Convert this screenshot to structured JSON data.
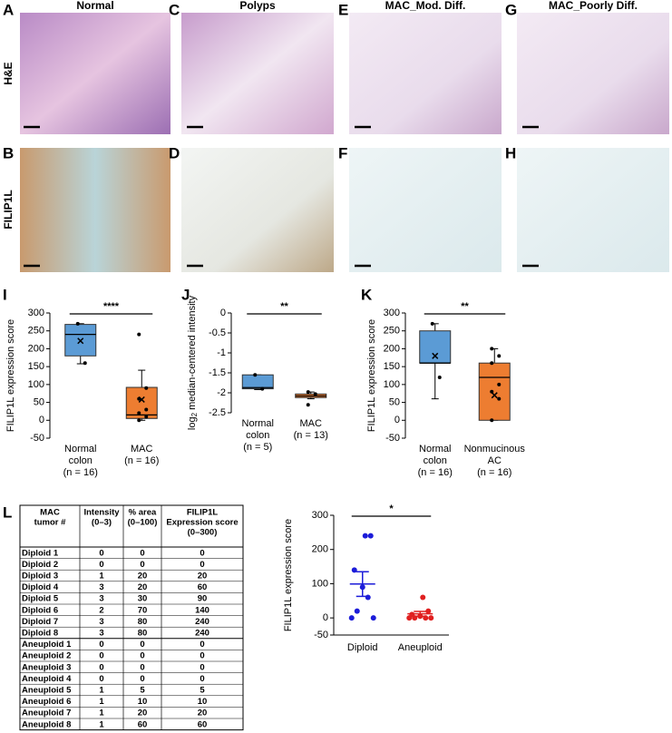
{
  "figure": {
    "panel_labels": [
      "A",
      "B",
      "C",
      "D",
      "E",
      "F",
      "G",
      "H",
      "I",
      "J",
      "K",
      "L"
    ],
    "column_titles": [
      "Normal",
      "Polyps",
      "MAC_Mod. Diff.",
      "MAC_Poorly Diff."
    ],
    "row_labels": [
      "H&E",
      "FILIP1L"
    ]
  },
  "chart_data": [
    {
      "type": "box",
      "ylabel": "FILIP1L expression score",
      "ylim": [
        -50,
        300
      ],
      "yticks": [
        -50,
        0,
        50,
        100,
        150,
        200,
        250,
        300
      ],
      "categories": [
        [
          "Normal",
          "colon",
          "(n = 16)"
        ],
        [
          "MAC",
          "(n = 16)"
        ]
      ],
      "significance": "****",
      "boxes": [
        {
          "color": "#5b9bd5",
          "min": 158,
          "q1": 180,
          "median": 240,
          "q3": 268,
          "max": 270,
          "mean": 222,
          "points": [
            270,
            160
          ]
        },
        {
          "color": "#ed7d31",
          "min": 0,
          "q1": 5,
          "median": 15,
          "q3": 92,
          "max": 140,
          "mean": 58,
          "points": [
            240,
            90,
            60,
            30,
            20,
            10,
            0
          ]
        }
      ]
    },
    {
      "type": "box",
      "ylabel_parts": [
        "log",
        "2",
        " median-centered intensity"
      ],
      "ylim": [
        -2.5,
        0
      ],
      "yticks": [
        -2.5,
        -2,
        -1.5,
        -1,
        -0.5,
        0
      ],
      "categories": [
        [
          "Normal",
          "colon",
          "(n = 5)"
        ],
        [
          "MAC",
          "(n = 13)"
        ]
      ],
      "significance": "**",
      "boxes": [
        {
          "color": "#5b9bd5",
          "min": -1.92,
          "q1": -1.9,
          "median": -1.87,
          "q3": -1.55,
          "max": -1.55,
          "points": [
            -1.55,
            -1.9
          ]
        },
        {
          "color": "#ed7d31",
          "min": -2.15,
          "q1": -2.12,
          "median": -2.08,
          "q3": -2.03,
          "max": -1.98,
          "points": [
            -1.98,
            -2.03,
            -2.3
          ]
        }
      ]
    },
    {
      "type": "box",
      "ylabel": "FILIP1L expression score",
      "ylim": [
        -50,
        300
      ],
      "yticks": [
        -50,
        0,
        50,
        100,
        150,
        200,
        250,
        300
      ],
      "categories": [
        [
          "Normal",
          "colon",
          "(n = 16)"
        ],
        [
          "Nonmucinous",
          "AC",
          "(n = 16)"
        ]
      ],
      "significance": "**",
      "boxes": [
        {
          "color": "#5b9bd5",
          "min": 60,
          "q1": 160,
          "median": 160,
          "q3": 250,
          "max": 270,
          "mean": 180,
          "points": [
            270,
            120
          ]
        },
        {
          "color": "#ed7d31",
          "min": 0,
          "q1": 0,
          "median": 120,
          "q3": 160,
          "max": 200,
          "mean": 70,
          "points": [
            200,
            180,
            160,
            100,
            80,
            60,
            0
          ]
        }
      ]
    },
    {
      "type": "scatter",
      "ylabel": "FILIP1L expression score",
      "ylim": [
        -50,
        300
      ],
      "yticks": [
        -50,
        0,
        100,
        200,
        300
      ],
      "significance": "*",
      "groups": [
        {
          "name": "Diploid",
          "color": "#1c1cd9",
          "values": [
            0,
            0,
            20,
            60,
            90,
            140,
            240,
            240
          ],
          "mean": 99,
          "sem": 36
        },
        {
          "name": "Aneuploid",
          "color": "#e02020",
          "values": [
            0,
            0,
            0,
            0,
            5,
            10,
            20,
            60
          ],
          "mean": 12,
          "sem": 7
        }
      ]
    }
  ],
  "table": {
    "header": [
      [
        "MAC",
        "tumor #"
      ],
      [
        "Intensity",
        "(0–3)"
      ],
      [
        "% area",
        "(0–100)"
      ],
      [
        "FILIP1L",
        "Expression score",
        "(0–300)"
      ]
    ],
    "rows": [
      [
        "Diploid 1",
        "0",
        "0",
        "0"
      ],
      [
        "Diploid 2",
        "0",
        "0",
        "0"
      ],
      [
        "Diploid 3",
        "1",
        "20",
        "20"
      ],
      [
        "Diploid 4",
        "3",
        "20",
        "60"
      ],
      [
        "Diploid 5",
        "3",
        "30",
        "90"
      ],
      [
        "Diploid 6",
        "2",
        "70",
        "140"
      ],
      [
        "Diploid 7",
        "3",
        "80",
        "240"
      ],
      [
        "Diploid 8",
        "3",
        "80",
        "240"
      ],
      [
        "Aneuploid 1",
        "0",
        "0",
        "0"
      ],
      [
        "Aneuploid 2",
        "0",
        "0",
        "0"
      ],
      [
        "Aneuploid 3",
        "0",
        "0",
        "0"
      ],
      [
        "Aneuploid 4",
        "0",
        "0",
        "0"
      ],
      [
        "Aneuploid 5",
        "1",
        "5",
        "5"
      ],
      [
        "Aneuploid 6",
        "1",
        "10",
        "10"
      ],
      [
        "Aneuploid 7",
        "1",
        "20",
        "20"
      ],
      [
        "Aneuploid 8",
        "1",
        "60",
        "60"
      ]
    ]
  }
}
